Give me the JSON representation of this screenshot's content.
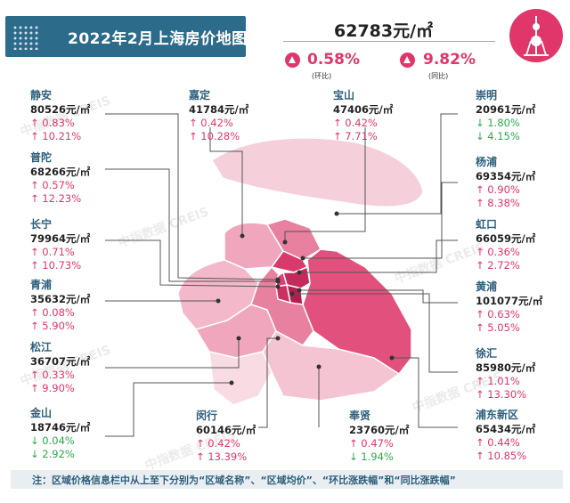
{
  "title": "2022年2月上海房价地图",
  "summary": {
    "avg_price": "62783元/㎡",
    "mom_value": "0.58%",
    "mom_label": "(环比)",
    "yoy_value": "9.82%",
    "yoy_label": "(同比)"
  },
  "districts": {
    "jingan": {
      "name": "静安",
      "price": "80526元/㎡",
      "mom": "↑ 0.83%",
      "yoy": "↑ 10.21%"
    },
    "putuo": {
      "name": "普陀",
      "price": "68266元/㎡",
      "mom": "↑ 0.57%",
      "yoy": "↑ 12.23%"
    },
    "changning": {
      "name": "长宁",
      "price": "79964元/㎡",
      "mom": "↑ 0.71%",
      "yoy": "↑ 10.73%"
    },
    "qingpu": {
      "name": "青浦",
      "price": "35632元/㎡",
      "mom": "↑ 0.08%",
      "yoy": "↑ 5.90%"
    },
    "songjiang": {
      "name": "松江",
      "price": "36707元/㎡",
      "mom": "↑ 0.33%",
      "yoy": "↑ 9.90%"
    },
    "jinshan": {
      "name": "金山",
      "price": "18746元/㎡",
      "mom": "↓ 0.04%",
      "yoy": "↓ 2.92%"
    },
    "jiading": {
      "name": "嘉定",
      "price": "41784元/㎡",
      "mom": "↑ 0.42%",
      "yoy": "↑ 10.28%"
    },
    "baoshan": {
      "name": "宝山",
      "price": "47406元/㎡",
      "mom": "↑ 0.42%",
      "yoy": "↑ 7.71%"
    },
    "chongming": {
      "name": "崇明",
      "price": "20961元/㎡",
      "mom": "↓ 1.80%",
      "yoy": "↓ 4.15%"
    },
    "yangpu": {
      "name": "杨浦",
      "price": "69354元/㎡",
      "mom": "↑ 0.90%",
      "yoy": "↑ 8.38%"
    },
    "hongkou": {
      "name": "虹口",
      "price": "66059元/㎡",
      "mom": "↑ 0.36%",
      "yoy": "↑ 2.72%"
    },
    "huangpu": {
      "name": "黄浦",
      "price": "101077元/㎡",
      "mom": "↑ 0.63%",
      "yoy": "↑ 5.05%"
    },
    "xuhui": {
      "name": "徐汇",
      "price": "85980元/㎡",
      "mom": "↑ 1.01%",
      "yoy": "↑ 13.30%"
    },
    "pudong": {
      "name": "浦东新区",
      "price": "65434元/㎡",
      "mom": "↑ 0.44%",
      "yoy": "↑ 10.85%"
    },
    "minhang": {
      "name": "闵行",
      "price": "60146元/㎡",
      "mom": "↑ 0.42%",
      "yoy": "↑ 13.39%"
    },
    "fengxian": {
      "name": "奉贤",
      "price": "23760元/㎡",
      "mom": "↑ 0.47%",
      "yoy": "↓ 1.94%"
    }
  },
  "watermark": "中指数据 CREIS",
  "note": "注：区域价格信息栏中从上至下分别为“区域名称”、“区域均价”、“环比涨跌幅”和“同比涨跌幅”",
  "colors": {
    "accent": "#e0366a",
    "header": "#2d6b8a",
    "up": "#e0366a",
    "down": "#2ea84a",
    "label": "#2d5e7b"
  }
}
